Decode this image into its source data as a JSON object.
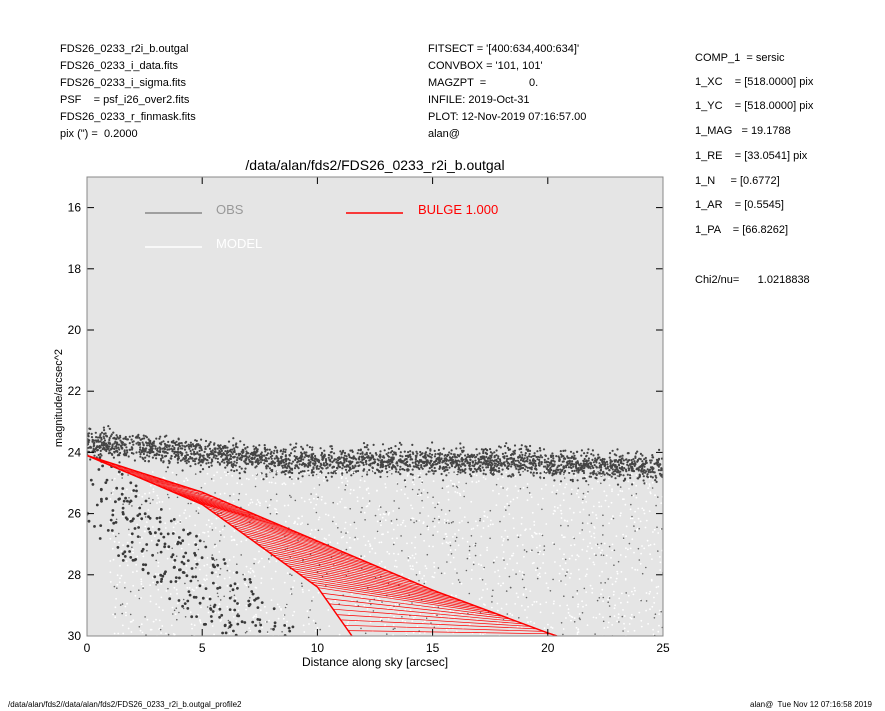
{
  "header": {
    "left": [
      "FDS26_0233_r2i_b.outgal",
      "FDS26_0233_i_data.fits",
      "FDS26_0233_i_sigma.fits",
      "PSF    = psf_i26_over2.fits",
      "FDS26_0233_r_finmask.fits",
      "pix (\") =  0.2000"
    ],
    "middle": [
      "FITSECT = '[400:634,400:634]'",
      "CONVBOX = '101, 101'",
      "MAGZPT  =              0.",
      "INFILE: 2019-Oct-31",
      "PLOT: 12-Nov-2019 07:16:57.00",
      "alan@"
    ]
  },
  "params": [
    "COMP_1  = sersic",
    "1_XC    = [518.0000] pix",
    "1_YC    = [518.0000] pix",
    "1_MAG   = 19.1788",
    "1_RE    = [33.0541] pix",
    "1_N     = [0.6772]",
    "1_AR    = [0.5545]",
    "1_PA    = [66.8262]"
  ],
  "chi2": "Chi2/nu=      1.0218838",
  "footer": {
    "left": "/data/alan/fds2//data/alan/fds2/FDS26_0233_r2i_b.outgal_profile2",
    "right": "alan@  Tue Nov 12 07:16:58 2019"
  },
  "colors": {
    "obs": "#444444",
    "model": "#ffffff",
    "bulge": "#ff0000",
    "plot_bg": "#e5e5e5"
  },
  "chart_data": {
    "type": "scatter",
    "title": "/data/alan/fds2/FDS26_0233_r2i_b.outgal",
    "xlabel": "Distance along sky [arcsec]",
    "ylabel": "magnitude/arcsec^2",
    "xlim": [
      0,
      25
    ],
    "ylim": [
      30,
      15
    ],
    "xticks": [
      0,
      5,
      10,
      15,
      20,
      25
    ],
    "yticks": [
      16,
      18,
      20,
      22,
      24,
      26,
      28,
      30
    ],
    "legend": [
      {
        "label": "OBS",
        "color": "#888888"
      },
      {
        "label": "BULGE  1.000",
        "color": "#ff0000"
      },
      {
        "label": "MODEL",
        "color": "#ffffff"
      }
    ],
    "series": [
      {
        "name": "OBS",
        "description": "dense band",
        "x": [
          0.3,
          3,
          6,
          9,
          12,
          15,
          18,
          21,
          24.8
        ],
        "y": [
          23.7,
          23.9,
          24.1,
          24.3,
          24.3,
          24.3,
          24.3,
          24.4,
          24.5
        ]
      },
      {
        "name": "BULGE  1.000",
        "x_upper": [
          0,
          5,
          10,
          15,
          20,
          20.4
        ],
        "y_upper": [
          24.1,
          25.3,
          26.9,
          28.5,
          29.9,
          30.0
        ],
        "x_lower": [
          0,
          5,
          10,
          11.5
        ],
        "y_lower": [
          24.1,
          25.7,
          28.4,
          30.0
        ]
      }
    ]
  }
}
